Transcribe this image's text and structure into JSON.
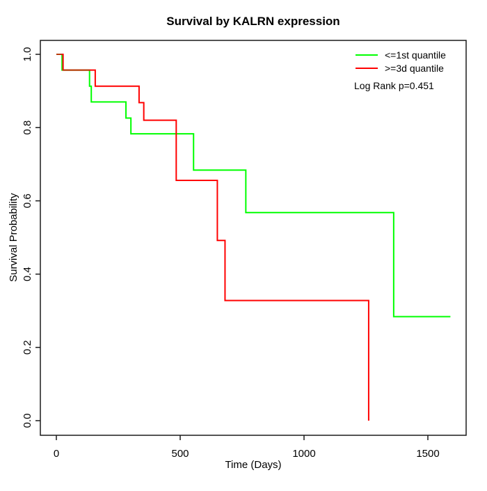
{
  "chart_data": {
    "type": "line",
    "subtype": "kaplan-meier-step",
    "title": "Survival by KALRN expression",
    "xlabel": "Time (Days)",
    "ylabel": "Survival Probability",
    "annotation": "Log Rank p=0.451",
    "x_tick_values": [
      0,
      500,
      1000,
      1500
    ],
    "x_tick_labels": [
      "0",
      "500",
      "1000",
      "1500"
    ],
    "y_tick_values": [
      1.0,
      0.8,
      0.6,
      0.4,
      0.2,
      0.0
    ],
    "y_tick_labels": [
      "1.0",
      "0.8",
      "0.6",
      "0.4",
      "0.2",
      "0.0"
    ],
    "xlim": [
      0,
      1650
    ],
    "ylim": [
      0.0,
      1.0
    ],
    "grid": false,
    "legend_position": "top-right",
    "background_color": "#ffffff",
    "axis_color": "#1a1a1a",
    "overlap_color": "#b83c0c",
    "series": [
      {
        "name": "<=1st quantile",
        "color": "#00ff00",
        "times": [
          0,
          23,
          134,
          141,
          281,
          301,
          554,
          765,
          1362
        ],
        "survival": [
          1.0,
          0.957,
          0.913,
          0.87,
          0.826,
          0.783,
          0.684,
          0.568,
          0.284
        ],
        "end_time": 1591
      },
      {
        "name": ">=3d quantile",
        "color": "#ff0000",
        "times": [
          0,
          27,
          157,
          334,
          353,
          484,
          650,
          681,
          1261
        ],
        "survival": [
          1.0,
          0.957,
          0.913,
          0.868,
          0.82,
          0.656,
          0.492,
          0.328,
          0.0
        ],
        "end_time": 1261
      }
    ],
    "overlap_segments": [
      {
        "t1": 0,
        "t2": 23,
        "s": 1.0
      },
      {
        "t1": 27,
        "t2": 134,
        "s": 0.957
      }
    ]
  }
}
